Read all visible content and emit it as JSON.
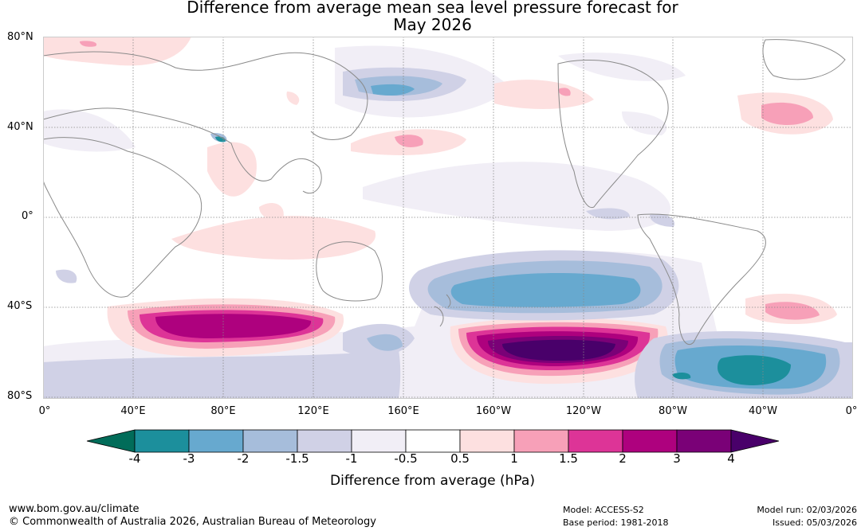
{
  "title": {
    "line1": "Difference from average mean sea level pressure forecast for",
    "line2": "May 2026"
  },
  "latitude_labels": [
    "80°N",
    "40°N",
    "0°",
    "40°S",
    "80°S"
  ],
  "longitude_labels": [
    "0°",
    "40°E",
    "80°E",
    "120°E",
    "160°E",
    "160°W",
    "120°W",
    "80°W",
    "40°W",
    "0°"
  ],
  "colorbar": {
    "ticks": [
      "-4",
      "-3",
      "-2",
      "-1.5",
      "-1",
      "-0.5",
      "0.5",
      "1",
      "1.5",
      "2",
      "3",
      "4"
    ],
    "colors": {
      "below_min": "#016c59",
      "c1": "#1c8f9c",
      "c2": "#67a9cf",
      "c3": "#a6bddb",
      "c4": "#d0d1e6",
      "c5": "#f1eef6",
      "c6": "#ffffff",
      "c7": "#fde0e0",
      "c8": "#f7a0b8",
      "c9": "#dd3497",
      "c10": "#ae017e",
      "c11": "#7a0177",
      "above_max": "#49006a"
    },
    "label": "Difference from average (hPa)"
  },
  "footer": {
    "url": "www.bom.gov.au/climate",
    "copyright": "© Commonwealth of Australia 2026, Australian Bureau of Meteorology",
    "model": "Model: ACCESS-S2",
    "base_period": "Base period: 1981-2018",
    "model_run": "Model run: 02/03/2026",
    "issued": "Issued: 05/03/2026"
  }
}
